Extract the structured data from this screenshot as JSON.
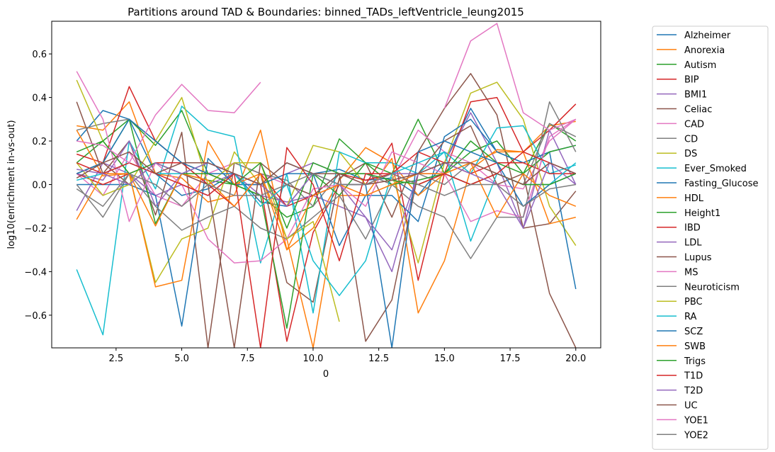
{
  "chart_data": {
    "type": "line",
    "title": "Partitions around TAD & Boundaries: binned_TADs_leftVentricle_leung2015",
    "xlabel": "0",
    "ylabel": "log10(enrichment in-vs-out)",
    "xlim": [
      0.05,
      20.95
    ],
    "ylim": [
      -0.75,
      0.75
    ],
    "xticks": [
      2.5,
      5.0,
      7.5,
      10.0,
      12.5,
      15.0,
      17.5,
      20.0
    ],
    "xtick_labels": [
      "2.5",
      "5.0",
      "7.5",
      "10.0",
      "12.5",
      "15.0",
      "17.5",
      "20.0"
    ],
    "yticks": [
      -0.6,
      -0.4,
      -0.2,
      0.0,
      0.2,
      0.4,
      0.6
    ],
    "ytick_labels": [
      "−0.6",
      "−0.4",
      "−0.2",
      "0.0",
      "0.2",
      "0.4",
      "0.6"
    ],
    "grid": false,
    "legend_position": "outside-right",
    "x": [
      1,
      2,
      3,
      4,
      5,
      6,
      7,
      8,
      9,
      10,
      11,
      12,
      13,
      14,
      15,
      16,
      17,
      18,
      19,
      20
    ],
    "series": [
      {
        "name": "Alzheimer",
        "color": "#1f77b4",
        "values": [
          0.2,
          0.34,
          0.3,
          0.05,
          -0.05,
          -0.02,
          0.05,
          -0.08,
          -0.1,
          0.05,
          0.07,
          0.02,
          0.03,
          -0.05,
          0.1,
          0.35,
          0.15,
          0.1,
          0.15,
          0.18
        ]
      },
      {
        "name": "Anorexia",
        "color": "#ff7f0e",
        "values": [
          0.27,
          0.25,
          0.38,
          0.05,
          0.03,
          -0.08,
          -0.05,
          0.25,
          -0.3,
          -0.2,
          0.02,
          0.17,
          0.1,
          -0.05,
          0.05,
          0.1,
          0.15,
          0.15,
          0.27,
          0.29
        ]
      },
      {
        "name": "Autism",
        "color": "#2ca02c",
        "values": [
          0.1,
          0.2,
          0.3,
          0.18,
          0.34,
          0.05,
          0.0,
          -0.05,
          -0.15,
          -0.1,
          0.21,
          0.1,
          0.05,
          0.3,
          0.05,
          0.15,
          0.2,
          0.05,
          0.28,
          0.2
        ]
      },
      {
        "name": "BIP",
        "color": "#d62728",
        "values": [
          0.14,
          0.1,
          0.45,
          0.2,
          0.1,
          0.05,
          0.0,
          0.0,
          -0.72,
          -0.22,
          0.0,
          0.0,
          0.19,
          -0.44,
          0.05,
          0.38,
          0.4,
          0.15,
          0.25,
          0.37
        ]
      },
      {
        "name": "BMI1",
        "color": "#9467bd",
        "values": [
          -0.12,
          0.1,
          0.05,
          -0.05,
          0.0,
          -0.05,
          0.05,
          -0.05,
          -0.08,
          -0.05,
          -0.1,
          -0.15,
          -0.4,
          0.05,
          0.1,
          0.33,
          0.1,
          -0.2,
          0.25,
          0.0
        ]
      },
      {
        "name": "Celiac",
        "color": "#8c564b",
        "values": [
          0.38,
          0.05,
          0.2,
          -0.14,
          0.24,
          -0.75,
          0.1,
          0.05,
          -0.45,
          -0.54,
          0.03,
          0.1,
          -0.15,
          0.15,
          0.35,
          0.51,
          0.32,
          -0.2,
          -0.18,
          -0.03
        ]
      },
      {
        "name": "CAD",
        "color": "#e377c2",
        "values": [
          0.05,
          -0.05,
          0.15,
          -0.05,
          -0.1,
          0.05,
          0.1,
          0.05,
          0.0,
          -0.05,
          0.0,
          0.0,
          0.02,
          0.25,
          0.15,
          0.1,
          0.0,
          -0.02,
          0.2,
          0.3
        ]
      },
      {
        "name": "CD",
        "color": "#7f7f7f",
        "values": [
          0.25,
          0.28,
          0.3,
          0.2,
          0.1,
          0.0,
          0.1,
          0.05,
          0.02,
          -0.1,
          0.05,
          0.05,
          0.0,
          0.05,
          0.0,
          0.1,
          0.05,
          0.0,
          0.28,
          0.22
        ]
      },
      {
        "name": "DS",
        "color": "#bcbd22",
        "values": [
          0.48,
          0.2,
          0.05,
          -0.45,
          -0.25,
          -0.2,
          0.15,
          0.0,
          -0.1,
          0.18,
          0.15,
          0.0,
          0.05,
          -0.36,
          0.1,
          0.42,
          0.47,
          0.3,
          -0.1,
          -0.28
        ]
      },
      {
        "name": "Ever_Smoked",
        "color": "#17becf",
        "values": [
          -0.39,
          -0.69,
          0.2,
          -0.02,
          0.36,
          0.25,
          0.22,
          -0.36,
          0.05,
          -0.59,
          0.15,
          0.1,
          0.1,
          0.05,
          0.15,
          0.05,
          0.26,
          0.27,
          0.05,
          0.09
        ]
      },
      {
        "name": "Fasting_Glucose",
        "color": "#1f77b4",
        "values": [
          0.0,
          0.0,
          0.0,
          -0.05,
          -0.65,
          0.12,
          0.0,
          0.0,
          0.1,
          0.05,
          -0.28,
          -0.05,
          -0.05,
          -0.17,
          0.22,
          0.3,
          0.15,
          0.1,
          0.15,
          -0.48
        ]
      },
      {
        "name": "HDL",
        "color": "#ff7f0e",
        "values": [
          0.25,
          0.04,
          0.05,
          -0.47,
          -0.44,
          0.2,
          0.0,
          0.05,
          -0.25,
          -0.75,
          -0.05,
          -0.05,
          0.12,
          -0.59,
          -0.35,
          0.07,
          0.16,
          0.15,
          -0.18,
          -0.15
        ]
      },
      {
        "name": "Height1",
        "color": "#2ca02c",
        "values": [
          0.05,
          0.1,
          0.3,
          -0.18,
          0.05,
          0.02,
          0.0,
          -0.05,
          -0.66,
          0.05,
          -0.05,
          0.1,
          0.0,
          0.02,
          0.05,
          0.2,
          0.1,
          0.05,
          0.15,
          0.18
        ]
      },
      {
        "name": "IBD",
        "color": "#d62728",
        "values": [
          0.05,
          0.0,
          0.05,
          0.1,
          0.1,
          0.0,
          -0.1,
          0.05,
          -0.1,
          -0.05,
          0.05,
          0.02,
          0.05,
          0.15,
          0.1,
          0.05,
          0.1,
          0.1,
          0.05,
          0.05
        ]
      },
      {
        "name": "LDL",
        "color": "#9467bd",
        "values": [
          0.05,
          0.02,
          0.2,
          -0.1,
          0.05,
          0.0,
          0.05,
          0.0,
          0.05,
          0.1,
          0.05,
          0.0,
          0.05,
          0.05,
          0.05,
          0.0,
          0.05,
          0.0,
          0.1,
          0.0
        ]
      },
      {
        "name": "Lupus",
        "color": "#8c564b",
        "values": [
          0.05,
          0.1,
          0.0,
          0.1,
          0.05,
          0.0,
          -0.75,
          0.1,
          0.0,
          -0.05,
          0.05,
          -0.72,
          -0.53,
          0.05,
          0.2,
          0.27,
          0.0,
          0.05,
          -0.5,
          -0.75
        ]
      },
      {
        "name": "MS",
        "color": "#e377c2",
        "values": [
          0.52,
          0.3,
          -0.17,
          0.1,
          0.0,
          -0.25,
          -0.36,
          -0.35,
          -0.25,
          -0.02,
          0.0,
          -0.1,
          0.15,
          0.1,
          0.05,
          -0.17,
          -0.12,
          -0.15,
          0.22,
          0.3
        ]
      },
      {
        "name": "Neuroticism",
        "color": "#7f7f7f",
        "values": [
          0.0,
          -0.15,
          0.05,
          -0.1,
          -0.21,
          -0.15,
          -0.1,
          -0.2,
          -0.25,
          -0.15,
          -0.05,
          -0.25,
          0.0,
          -0.1,
          -0.15,
          -0.34,
          -0.15,
          -0.15,
          0.38,
          0.15
        ]
      },
      {
        "name": "PBC",
        "color": "#bcbd22",
        "values": [
          0.1,
          -0.05,
          0.0,
          0.2,
          0.4,
          0.0,
          0.1,
          0.1,
          -0.25,
          -0.17,
          -0.63,
          null,
          null,
          null,
          null,
          null,
          null,
          null,
          null,
          null
        ]
      },
      {
        "name": "RA",
        "color": "#17becf",
        "values": [
          0.02,
          0.05,
          0.1,
          0.05,
          0.05,
          0.1,
          0.05,
          -0.1,
          0.0,
          -0.35,
          -0.51,
          -0.35,
          0.05,
          0.1,
          0.15,
          -0.26,
          0.05,
          0.0,
          0.0,
          0.1
        ]
      },
      {
        "name": "SCZ",
        "color": "#1f77b4",
        "values": [
          0.05,
          0.1,
          0.3,
          0.2,
          0.1,
          0.05,
          0.05,
          0.0,
          0.05,
          0.05,
          0.0,
          0.0,
          -0.75,
          0.15,
          0.2,
          0.15,
          0.1,
          -0.1,
          0.0,
          0.05
        ]
      },
      {
        "name": "SWB",
        "color": "#ff7f0e",
        "values": [
          -0.16,
          0.05,
          0.05,
          -0.19,
          0.05,
          0.02,
          -0.1,
          0.05,
          -0.3,
          -0.05,
          0.0,
          -0.05,
          0.0,
          0.05,
          0.05,
          0.1,
          -0.15,
          0.05,
          -0.05,
          -0.1
        ]
      },
      {
        "name": "Trigs",
        "color": "#2ca02c",
        "values": [
          0.15,
          0.2,
          0.05,
          0.1,
          0.05,
          0.05,
          0.0,
          0.1,
          -0.2,
          0.1,
          0.05,
          0.05,
          0.02,
          0.0,
          0.05,
          0.0,
          0.05,
          0.0,
          0.0,
          0.05
        ]
      },
      {
        "name": "T1D",
        "color": "#d62728",
        "values": [
          0.1,
          0.05,
          0.1,
          0.05,
          0.0,
          -0.05,
          0.05,
          -0.75,
          0.17,
          0.0,
          -0.35,
          0.05,
          0.05,
          0.0,
          0.05,
          0.0,
          0.05,
          0.15,
          0.1,
          0.05
        ]
      },
      {
        "name": "T2D",
        "color": "#9467bd",
        "values": [
          0.07,
          0.05,
          0.0,
          0.1,
          0.05,
          0.1,
          0.05,
          0.0,
          -0.1,
          0.05,
          0.0,
          -0.15,
          -0.3,
          0.05,
          0.1,
          0.05,
          0.0,
          -0.2,
          0.1,
          0.05
        ]
      },
      {
        "name": "UC",
        "color": "#8c564b",
        "values": [
          0.03,
          0.1,
          0.15,
          0.05,
          0.1,
          0.1,
          0.05,
          0.0,
          0.1,
          0.05,
          0.05,
          0.0,
          0.02,
          0.05,
          0.1,
          0.1,
          0.05,
          0.0,
          0.1,
          0.05
        ]
      },
      {
        "name": "YOE1",
        "color": "#e377c2",
        "values": [
          0.2,
          0.18,
          0.1,
          0.32,
          0.46,
          0.34,
          0.33,
          0.47,
          null,
          null,
          null,
          null,
          null,
          null,
          0.35,
          0.66,
          0.74,
          0.33,
          0.25,
          0.3
        ]
      },
      {
        "name": "YOE2",
        "color": "#7f7f7f",
        "values": [
          -0.02,
          -0.1,
          0.05,
          0.0,
          -0.1,
          0.0,
          -0.05,
          -0.05,
          0.0,
          0.05,
          0.0,
          0.0,
          0.05,
          0.0,
          -0.05,
          0.0,
          0.0,
          -0.1,
          -0.02,
          0.0
        ]
      }
    ]
  }
}
